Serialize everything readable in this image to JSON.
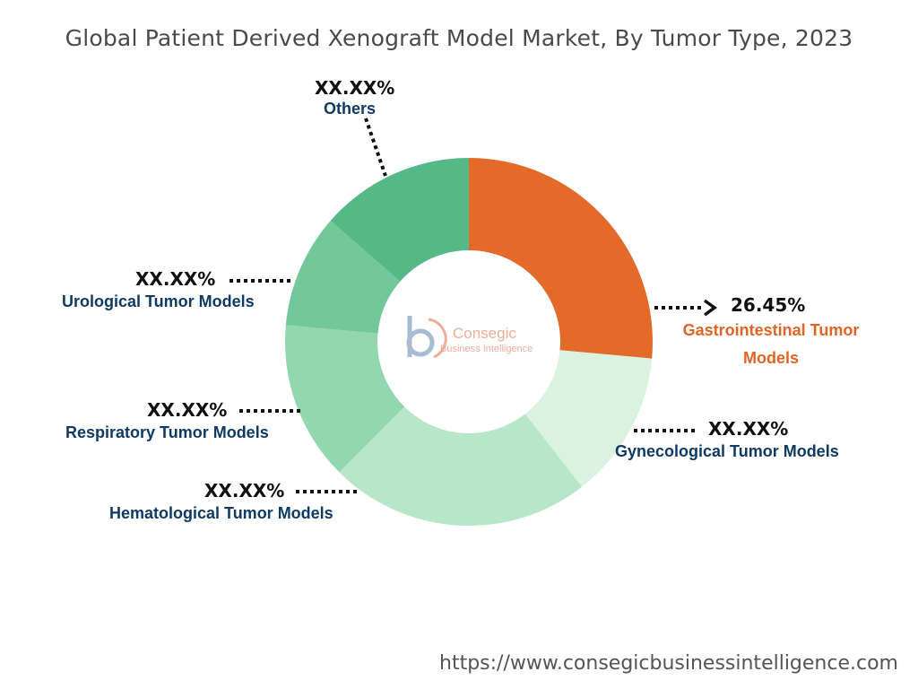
{
  "chart_data": {
    "type": "pie",
    "title": "Global Patient Derived Xenograft Model Market, By Tumor Type, 2023",
    "donut": true,
    "labels": [
      "Gastrointestinal Tumor Models",
      "Gynecological Tumor Models",
      "Hematological Tumor Models",
      "Respiratory Tumor Models",
      "Urological Tumor Models",
      "Others"
    ],
    "values": [
      26.45,
      13.0,
      23.0,
      14.0,
      10.0,
      13.55
    ],
    "value_labels": [
      "26.45%",
      "XX.XX%",
      "XX.XX%",
      "XX.XX%",
      "XX.XX%",
      "XX.XX%"
    ],
    "colors": [
      "#e36a28",
      "#daf3de",
      "#b7e6c8",
      "#93d7b0",
      "#72c79b",
      "#54b887"
    ]
  },
  "logo": {
    "name": "Consegic",
    "tagline": "Business Intelligence"
  },
  "footer": {
    "url": "https://www.consegicbusinessintelligence.com"
  }
}
